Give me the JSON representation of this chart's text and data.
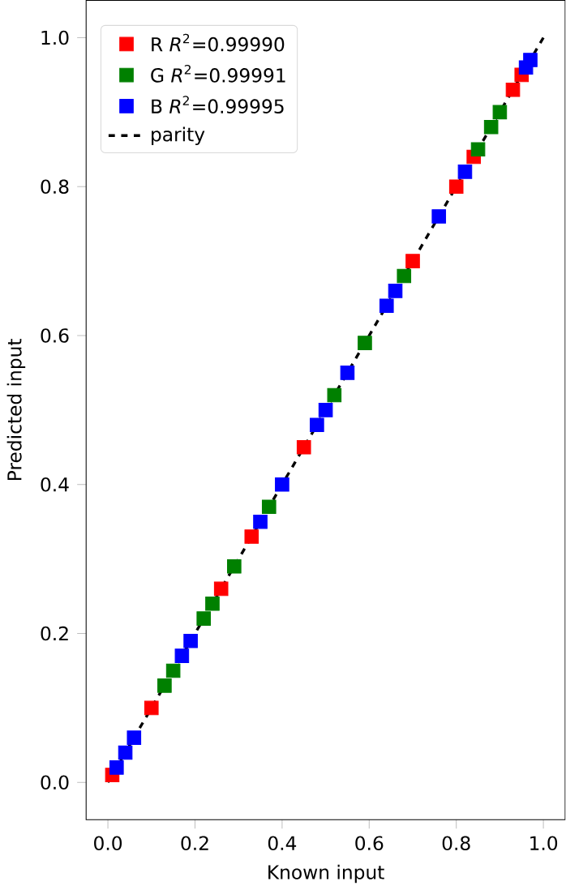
{
  "chart_data": {
    "type": "scatter",
    "xlabel": "Known input",
    "ylabel": "Predicted input",
    "xlim": [
      -0.05,
      1.05
    ],
    "ylim": [
      -0.05,
      1.05
    ],
    "xticks": [
      {
        "value": 0,
        "label": "0.0"
      },
      {
        "value": 0.2,
        "label": "0.2"
      },
      {
        "value": 0.4,
        "label": "0.4"
      },
      {
        "value": 0.6,
        "label": "0.6"
      },
      {
        "value": 0.8,
        "label": "0.8"
      },
      {
        "value": 1,
        "label": "1.0"
      }
    ],
    "yticks": [
      {
        "value": 0,
        "label": "0.0"
      },
      {
        "value": 0.2,
        "label": "0.2"
      },
      {
        "value": 0.4,
        "label": "0.4"
      },
      {
        "value": 0.6,
        "label": "0.6"
      },
      {
        "value": 0.8,
        "label": "0.8"
      },
      {
        "value": 1,
        "label": "1.0"
      }
    ],
    "marker": "square",
    "legend": "top left",
    "grid": false,
    "series": [
      {
        "name": "R *R*$^{2}$=0.99990",
        "color": "#ff0000",
        "x": [
          0.01,
          0.02,
          0.1,
          0.16,
          0.26,
          0.33,
          0.45,
          0.55,
          0.7,
          0.8,
          0.84,
          0.93,
          0.95
        ],
        "values": [
          0.01,
          null,
          0.1,
          null,
          0.26,
          0.33,
          0.45,
          null,
          0.7,
          0.8,
          0.84,
          0.93,
          0.95
        ]
      },
      {
        "name": "G *R*$^{2}$=0.99991",
        "color": "#008000",
        "x": [
          0.13,
          0.15,
          0.22,
          0.24,
          0.29,
          0.37,
          0.52,
          0.59,
          0.68,
          0.85,
          0.88,
          0.9
        ],
        "values": [
          0.13,
          0.15,
          0.22,
          0.24,
          0.29,
          0.37,
          0.52,
          0.59,
          0.68,
          0.85,
          0.88,
          0.9
        ]
      },
      {
        "name": "B *R*$^{2}$=0.99995",
        "color": "#0000ff",
        "x": [
          0.02,
          0.04,
          0.06,
          0.17,
          0.19,
          0.35,
          0.4,
          0.48,
          0.5,
          0.55,
          0.64,
          0.66,
          0.76,
          0.82,
          0.96,
          0.97
        ],
        "values": [
          0.02,
          0.04,
          0.06,
          0.17,
          0.19,
          0.35,
          0.4,
          0.48,
          0.5,
          0.55,
          0.64,
          0.66,
          0.76,
          0.82,
          0.96,
          0.97
        ]
      },
      {
        "name": "parity",
        "type": "line",
        "line_style": "dashed",
        "marker": "none",
        "color": "#000000",
        "x": [
          0,
          1
        ],
        "values": [
          0,
          1
        ]
      }
    ]
  }
}
